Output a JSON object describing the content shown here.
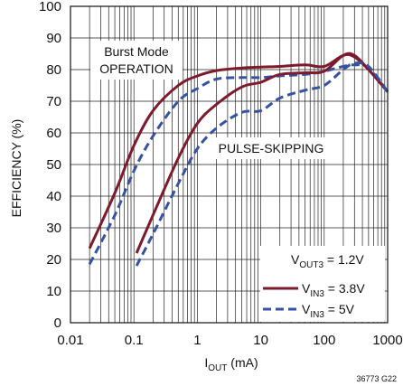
{
  "chart_data": {
    "type": "line",
    "x_scale": "log",
    "xlim": [
      0.01,
      1000
    ],
    "ylim": [
      0,
      100
    ],
    "grid": true,
    "xlabel_main": "I",
    "xlabel_sub": "OUT",
    "xlabel_unit": " (mA)",
    "ylabel": "EFFICIENCY (%)",
    "x_ticks": [
      "0.01",
      "0.1",
      "1",
      "10",
      "100",
      "1000"
    ],
    "y_ticks": [
      "0",
      "10",
      "20",
      "30",
      "40",
      "50",
      "60",
      "70",
      "80",
      "90",
      "100"
    ],
    "annotations": {
      "burst_line1": "Burst Mode",
      "burst_line2": "OPERATION",
      "pulse_skipping": "PULSE-SKIPPING"
    },
    "legend": {
      "placement": "bottom-right",
      "vout_main": "V",
      "vout_sub": "OUT3",
      "vout_val": " = 1.2V",
      "entries": [
        {
          "main": "V",
          "sub": "IN3",
          "val": " = 3.8V",
          "style": "solid"
        },
        {
          "main": "V",
          "sub": "IN3",
          "val": " = 5V",
          "style": "dashed"
        }
      ]
    },
    "figure_code": "36773 G22",
    "series": [
      {
        "style": "solid",
        "mode": "Burst Mode",
        "x": [
          0.02,
          0.05,
          0.1,
          0.2,
          0.5,
          1,
          2,
          5,
          10,
          20,
          50,
          100,
          200,
          300,
          500,
          1000
        ],
        "y": [
          23.5,
          41,
          56,
          67,
          75,
          78,
          79.7,
          80.5,
          80.8,
          81,
          81.5,
          81,
          84.5,
          84,
          80,
          73
        ]
      },
      {
        "style": "dashed",
        "mode": "Burst Mode",
        "x": [
          0.02,
          0.05,
          0.1,
          0.2,
          0.5,
          1,
          2,
          5,
          10,
          20,
          50,
          100,
          200,
          300,
          500,
          1000
        ],
        "y": [
          18.5,
          34,
          48,
          59,
          70,
          74,
          77,
          77.5,
          77.5,
          78,
          78.5,
          79.5,
          81,
          81.5,
          80.5,
          73
        ]
      },
      {
        "style": "solid",
        "mode": "pulse-skipping",
        "x": [
          0.11,
          0.2,
          0.5,
          1,
          2,
          5,
          10,
          20,
          50,
          100,
          200,
          300,
          500,
          1000
        ],
        "y": [
          22,
          34,
          52,
          63,
          69,
          74.5,
          76,
          78.5,
          79,
          79.5,
          84.5,
          84.5,
          80,
          73
        ]
      },
      {
        "style": "dashed",
        "mode": "pulse-skipping",
        "x": [
          0.11,
          0.2,
          0.5,
          1,
          2,
          5,
          10,
          20,
          50,
          100,
          200,
          300,
          500,
          1000
        ],
        "y": [
          18,
          28,
          44,
          55,
          61.5,
          66.5,
          67,
          71,
          73.5,
          75,
          80,
          82,
          81,
          73
        ]
      }
    ]
  }
}
